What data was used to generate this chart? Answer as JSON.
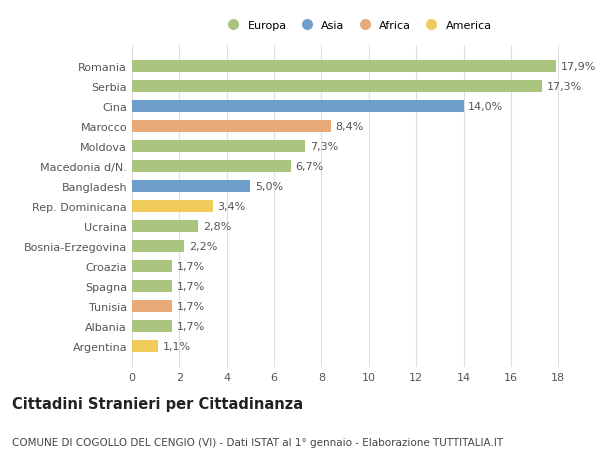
{
  "title": "Cittadini Stranieri per Cittadinanza",
  "subtitle": "COMUNE DI COGOLLO DEL CENGIO (VI) - Dati ISTAT al 1° gennaio - Elaborazione TUTTITALIA.IT",
  "countries": [
    "Romania",
    "Serbia",
    "Cina",
    "Marocco",
    "Moldova",
    "Macedonia d/N.",
    "Bangladesh",
    "Rep. Dominicana",
    "Ucraina",
    "Bosnia-Erzegovina",
    "Croazia",
    "Spagna",
    "Tunisia",
    "Albania",
    "Argentina"
  ],
  "values": [
    17.9,
    17.3,
    14.0,
    8.4,
    7.3,
    6.7,
    5.0,
    3.4,
    2.8,
    2.2,
    1.7,
    1.7,
    1.7,
    1.7,
    1.1
  ],
  "labels": [
    "17,9%",
    "17,3%",
    "14,0%",
    "8,4%",
    "7,3%",
    "6,7%",
    "5,0%",
    "3,4%",
    "2,8%",
    "2,2%",
    "1,7%",
    "1,7%",
    "1,7%",
    "1,7%",
    "1,1%"
  ],
  "continents": [
    "Europa",
    "Europa",
    "Asia",
    "Africa",
    "Europa",
    "Europa",
    "Asia",
    "America",
    "Europa",
    "Europa",
    "Europa",
    "Europa",
    "Africa",
    "Europa",
    "America"
  ],
  "colors": {
    "Europa": "#a8c47e",
    "Asia": "#6e9fcb",
    "Africa": "#e8aa78",
    "America": "#f2cc5a"
  },
  "legend_order": [
    "Europa",
    "Asia",
    "Africa",
    "America"
  ],
  "legend_colors": [
    "#a8c47e",
    "#6e9fcb",
    "#e8aa78",
    "#f2cc5a"
  ],
  "background_color": "#ffffff",
  "grid_color": "#dddddd",
  "xlim": [
    0,
    19
  ],
  "xticks": [
    0,
    2,
    4,
    6,
    8,
    10,
    12,
    14,
    16,
    18
  ],
  "bar_height": 0.62,
  "label_fontsize": 8.0,
  "tick_fontsize": 8.0,
  "title_fontsize": 10.5,
  "subtitle_fontsize": 7.5
}
